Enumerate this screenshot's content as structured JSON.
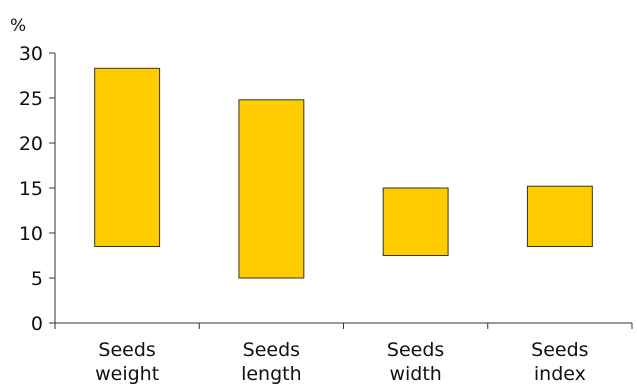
{
  "chart_data": {
    "type": "bar",
    "style": "floating-range",
    "unit": "%",
    "categories": [
      [
        "Seeds",
        "weight"
      ],
      [
        "Seeds",
        "length"
      ],
      [
        "Seeds",
        "width"
      ],
      [
        "Seeds",
        "index"
      ]
    ],
    "ranges": [
      {
        "low": 8.5,
        "high": 28.3
      },
      {
        "low": 5.0,
        "high": 24.8
      },
      {
        "low": 7.5,
        "high": 15.0
      },
      {
        "low": 8.5,
        "high": 15.2
      }
    ],
    "yticks": [
      0,
      5,
      10,
      15,
      20,
      25,
      30
    ],
    "ylim": [
      0,
      30
    ],
    "grid": false,
    "legend": "none",
    "bar_color": "#FFCC00"
  }
}
